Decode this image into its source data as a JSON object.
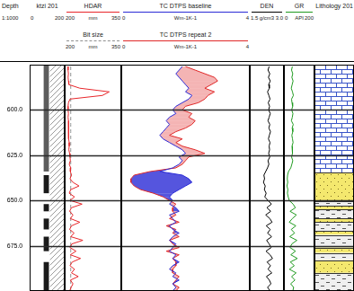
{
  "chart_data": {
    "type": "well_log",
    "ylabel": "Depth",
    "subtitle": "1:1000",
    "ylim": [
      575,
      700
    ],
    "yticks": [
      {
        "value": 600,
        "label": "600.0"
      },
      {
        "value": 625,
        "label": "625.0"
      },
      {
        "value": 650,
        "label": "650.0"
      },
      {
        "value": 675,
        "label": "675.0"
      }
    ],
    "grid": true,
    "y": [
      576,
      578,
      580,
      582,
      584,
      586,
      588,
      590,
      592,
      594,
      596,
      598,
      600,
      602,
      604,
      606,
      608,
      610,
      612,
      614,
      616,
      618,
      620,
      622,
      624,
      626,
      628,
      630,
      632,
      634,
      636,
      638,
      640,
      642,
      644,
      646,
      648,
      650,
      652,
      654,
      656,
      658,
      660,
      662,
      664,
      666,
      668,
      670,
      672,
      674,
      676,
      678,
      680,
      682,
      684,
      686,
      688,
      690,
      692,
      694,
      696,
      698,
      700
    ],
    "tracks": [
      {
        "type": "intervals",
        "title": "ktzi 201",
        "xlim": [
          0,
          200
        ],
        "xticks": [
          0,
          200
        ],
        "intervals": [
          {
            "top": 575,
            "base": 700,
            "type": "cement"
          },
          {
            "top": 575,
            "base": 634,
            "type": "casing"
          },
          {
            "top": 636,
            "base": 646,
            "type": "screen"
          },
          {
            "top": 652,
            "base": 656,
            "type": "screen"
          },
          {
            "top": 660,
            "base": 666,
            "type": "screen"
          },
          {
            "top": 670,
            "base": 678,
            "type": "screen"
          },
          {
            "top": 684,
            "base": 700,
            "type": "screen"
          }
        ]
      },
      {
        "type": "line",
        "xlim": [
          200,
          350
        ],
        "series": [
          {
            "name": "HDAR",
            "color": "#e8262a",
            "xticks": [
              200,
              350
            ],
            "xlabel": "mm",
            "values": [
              209,
              209,
              210,
              209,
              210,
              211,
              240,
              318,
              300,
              214,
              210,
              209,
              209,
              210,
              209,
              210,
              210,
              211,
              210,
              210,
              211,
              212,
              212,
              211,
              213,
              214,
              215,
              212,
              216,
              215,
              218,
              214,
              222,
              238,
              216,
              212,
              226,
              214,
              246,
              218,
              213,
              222,
              215,
              240,
              218,
              213,
              225,
              216,
              248,
              219,
              214,
              230,
              215,
              242,
              220,
              214,
              226,
              218,
              236,
              215,
              222,
              217,
              213
            ]
          },
          {
            "name": "Bit size",
            "color": "#909090",
            "line_style": "dashed",
            "xticks": [
              200,
              350
            ],
            "xlabel": "mm",
            "values": [
              216,
              216,
              216,
              216,
              216,
              216,
              216,
              216,
              216,
              216,
              216,
              216,
              216,
              216,
              216,
              216,
              216,
              216,
              216,
              216,
              216,
              216,
              216,
              216,
              216,
              216,
              216,
              216,
              216,
              216,
              216,
              216,
              216,
              216,
              216,
              216,
              216,
              216,
              216,
              216,
              216,
              216,
              216,
              216,
              216,
              216,
              216,
              216,
              216,
              216,
              216,
              216,
              216,
              216,
              216,
              216,
              216,
              216,
              216,
              216,
              216,
              216,
              216
            ]
          }
        ]
      },
      {
        "type": "area",
        "xlim": [
          0,
          4
        ],
        "series": [
          {
            "name": "TC DTPS baseline",
            "color": "#2a2ad6",
            "xticks": [
              0,
              4
            ],
            "xlabel": "Wm-1K-1",
            "values": [
              1.9,
              1.8,
              1.7,
              1.8,
              1.9,
              2.0,
              2.1,
              2.0,
              2.2,
              2.1,
              1.9,
              1.7,
              1.6,
              1.7,
              1.5,
              1.4,
              1.5,
              1.4,
              1.3,
              1.2,
              1.3,
              1.5,
              1.7,
              1.9,
              2.0,
              1.8,
              1.9,
              1.8,
              1.6,
              1.2,
              1.9,
              2.1,
              2.2,
              2.0,
              1.8,
              1.6,
              1.5,
              1.6,
              1.5,
              1.7,
              1.8,
              1.5,
              1.6,
              1.7,
              1.5,
              1.6,
              1.8,
              1.6,
              1.5,
              1.7,
              1.6,
              1.5,
              1.7,
              1.6,
              1.8,
              1.6,
              1.5,
              1.7,
              1.6,
              1.8,
              1.6,
              1.7,
              1.6
            ]
          },
          {
            "name": "TC DTPS repeat 2",
            "color": "#e02828",
            "xticks": [
              0,
              4
            ],
            "xlabel": "Wm-1K-1",
            "values": [
              2.0,
              2.3,
              2.6,
              2.9,
              3.0,
              2.8,
              2.6,
              2.9,
              2.7,
              2.6,
              2.4,
              2.0,
              1.9,
              2.2,
              2.1,
              2.3,
              2.2,
              2.0,
              1.7,
              1.5,
              1.9,
              1.7,
              1.9,
              2.3,
              2.6,
              2.1,
              2.0,
              1.9,
              1.7,
              0.9,
              0.4,
              0.3,
              0.3,
              0.4,
              0.6,
              1.0,
              1.3,
              1.5,
              1.7,
              1.6,
              1.6,
              1.7,
              1.5,
              1.8,
              1.4,
              1.7,
              1.6,
              1.8,
              1.5,
              1.6,
              1.8,
              1.4,
              1.8,
              1.6,
              1.7,
              1.7,
              1.6,
              1.6,
              1.8,
              1.7,
              1.6,
              1.8,
              1.7
            ]
          }
        ]
      },
      {
        "type": "line",
        "xlim": [
          1.5,
          3.0
        ],
        "series": [
          {
            "name": "DEN",
            "color": "#000000",
            "xticks": [
              {
                "value": 1.5,
                "label": "1.5"
              },
              {
                "value": 3,
                "label": "3.0"
              }
            ],
            "xlabel": "g/cm3",
            "values": [
              2.35,
              2.3,
              2.38,
              2.32,
              2.4,
              2.33,
              2.36,
              2.28,
              2.34,
              2.39,
              2.31,
              2.37,
              2.33,
              2.4,
              2.35,
              2.3,
              2.38,
              2.34,
              2.41,
              2.36,
              2.32,
              2.39,
              2.35,
              2.37,
              2.33,
              2.38,
              2.3,
              2.34,
              2.28,
              2.2,
              2.12,
              2.15,
              2.1,
              2.18,
              2.14,
              2.22,
              2.16,
              2.3,
              2.45,
              2.25,
              2.42,
              2.2,
              2.38,
              2.48,
              2.22,
              2.4,
              2.28,
              2.46,
              2.24,
              2.35,
              2.44,
              2.21,
              2.39,
              2.5,
              2.26,
              2.41,
              2.3,
              2.47,
              2.23,
              2.36,
              2.43,
              2.28,
              2.4
            ]
          }
        ]
      },
      {
        "type": "line",
        "xlim": [
          0,
          200
        ],
        "series": [
          {
            "name": "GR",
            "color": "#1f9a1f",
            "xticks": [
              0,
              200
            ],
            "xlabel": "API",
            "values": [
              55,
              50,
              58,
              52,
              60,
              54,
              48,
              56,
              62,
              50,
              53,
              57,
              51,
              59,
              55,
              49,
              61,
              54,
              58,
              52,
              56,
              60,
              53,
              57,
              55,
              50,
              58,
              52,
              45,
              30,
              24,
              22,
              25,
              20,
              26,
              23,
              28,
              35,
              60,
              75,
              40,
              82,
              55,
              35,
              78,
              48,
              70,
              38,
              85,
              52,
              40,
              76,
              45,
              88,
              42,
              68,
              36,
              80,
              50,
              72,
              44,
              64,
              58
            ]
          }
        ]
      },
      {
        "type": "intervals",
        "title": "Lithology 201",
        "intervals": [
          {
            "top": 575,
            "base": 634.5,
            "type": "limestone"
          },
          {
            "top": 634.5,
            "base": 650.5,
            "type": "sandstone"
          },
          {
            "top": 650.5,
            "base": 653,
            "type": "shale"
          },
          {
            "top": 653,
            "base": 655,
            "type": "sandstone"
          },
          {
            "top": 655,
            "base": 660,
            "type": "shale"
          },
          {
            "top": 660,
            "base": 662,
            "type": "sandstone"
          },
          {
            "top": 662,
            "base": 667,
            "type": "shale"
          },
          {
            "top": 667,
            "base": 669,
            "type": "sandstone"
          },
          {
            "top": 669,
            "base": 676,
            "type": "shale"
          },
          {
            "top": 676,
            "base": 679,
            "type": "sandstone"
          },
          {
            "top": 679,
            "base": 683,
            "type": "shale"
          },
          {
            "top": 683,
            "base": 690,
            "type": "sandstone"
          },
          {
            "top": 690,
            "base": 700,
            "type": "shale"
          }
        ]
      }
    ]
  }
}
